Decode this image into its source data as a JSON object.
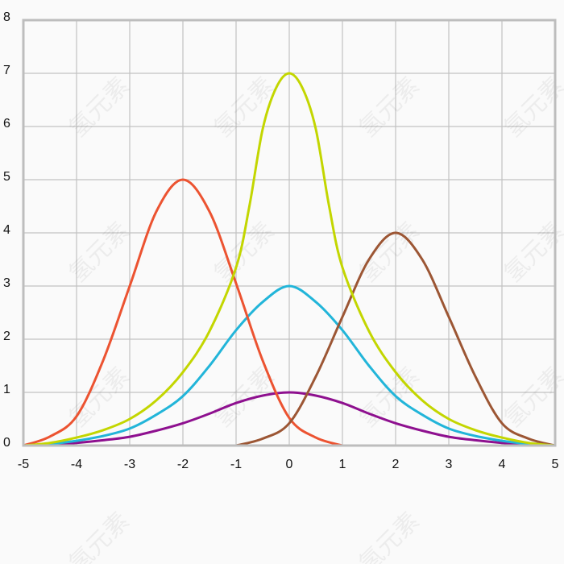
{
  "chart_data": {
    "type": "line",
    "title": "",
    "xlabel": "",
    "ylabel": "",
    "xlim": [
      -5,
      5
    ],
    "ylim": [
      0,
      8
    ],
    "grid": true,
    "legend": "none",
    "x_ticks": [
      "-5",
      "-4",
      "-3",
      "-2",
      "-1",
      "0",
      "1",
      "2",
      "3",
      "4",
      "5"
    ],
    "y_ticks": [
      "0",
      "1",
      "2",
      "3",
      "4",
      "5",
      "6",
      "7",
      "8"
    ],
    "series": [
      {
        "name": "purple-curve",
        "color": "#8e108f",
        "x": [
          -5,
          -4.5,
          -4,
          -3.5,
          -3,
          -2.5,
          -2,
          -1.5,
          -1,
          -0.5,
          0,
          0.5,
          1,
          1.5,
          2,
          2.5,
          3,
          3.5,
          4,
          4.5,
          5
        ],
        "y": [
          0,
          0.015,
          0.05,
          0.1,
          0.165,
          0.28,
          0.42,
          0.6,
          0.8,
          0.94,
          1,
          0.94,
          0.8,
          0.6,
          0.42,
          0.28,
          0.165,
          0.1,
          0.05,
          0.015,
          0
        ]
      },
      {
        "name": "cyan-curve",
        "color": "#22b5d9",
        "x": [
          -5,
          -4.5,
          -4,
          -3.5,
          -3,
          -2.5,
          -2,
          -1.5,
          -1,
          -0.5,
          0,
          0.5,
          1,
          1.5,
          2,
          2.5,
          3,
          3.5,
          4,
          4.5,
          5
        ],
        "y": [
          0,
          0.03,
          0.09,
          0.18,
          0.32,
          0.58,
          0.93,
          1.5,
          2.17,
          2.7,
          3,
          2.7,
          2.17,
          1.5,
          0.93,
          0.58,
          0.32,
          0.18,
          0.09,
          0.03,
          0
        ]
      },
      {
        "name": "red-curve",
        "color": "#ec5331",
        "x": [
          -5,
          -4.5,
          -4,
          -3.5,
          -3,
          -2.5,
          -2,
          -1.5,
          -1,
          -0.5,
          0,
          0.5,
          1
        ],
        "y": [
          0,
          0.17,
          0.55,
          1.6,
          3.0,
          4.4,
          5,
          4.4,
          3.05,
          1.6,
          0.52,
          0.15,
          0
        ]
      },
      {
        "name": "brown-curve",
        "color": "#9c5634",
        "x": [
          -1,
          -0.5,
          0,
          0.5,
          1,
          1.5,
          2,
          2.5,
          3,
          3.5,
          4,
          4.5,
          5
        ],
        "y": [
          0,
          0.13,
          0.42,
          1.3,
          2.42,
          3.5,
          4,
          3.5,
          2.42,
          1.3,
          0.42,
          0.13,
          0
        ]
      },
      {
        "name": "yellow-green-curve",
        "color": "#c3d600",
        "x": [
          -5,
          -4.5,
          -4,
          -3.5,
          -3,
          -2.5,
          -2,
          -1.5,
          -1,
          -0.75,
          -0.5,
          -0.25,
          0,
          0.25,
          0.5,
          0.75,
          1,
          1.5,
          2,
          2.5,
          3,
          3.5,
          4,
          4.5,
          5
        ],
        "y": [
          0,
          0.05,
          0.15,
          0.29,
          0.5,
          0.85,
          1.38,
          2.15,
          3.35,
          4.5,
          5.95,
          6.72,
          7,
          6.72,
          5.95,
          4.5,
          3.35,
          2.15,
          1.38,
          0.85,
          0.5,
          0.29,
          0.15,
          0.05,
          0
        ]
      }
    ]
  },
  "watermark": {
    "text": "氢元素"
  }
}
